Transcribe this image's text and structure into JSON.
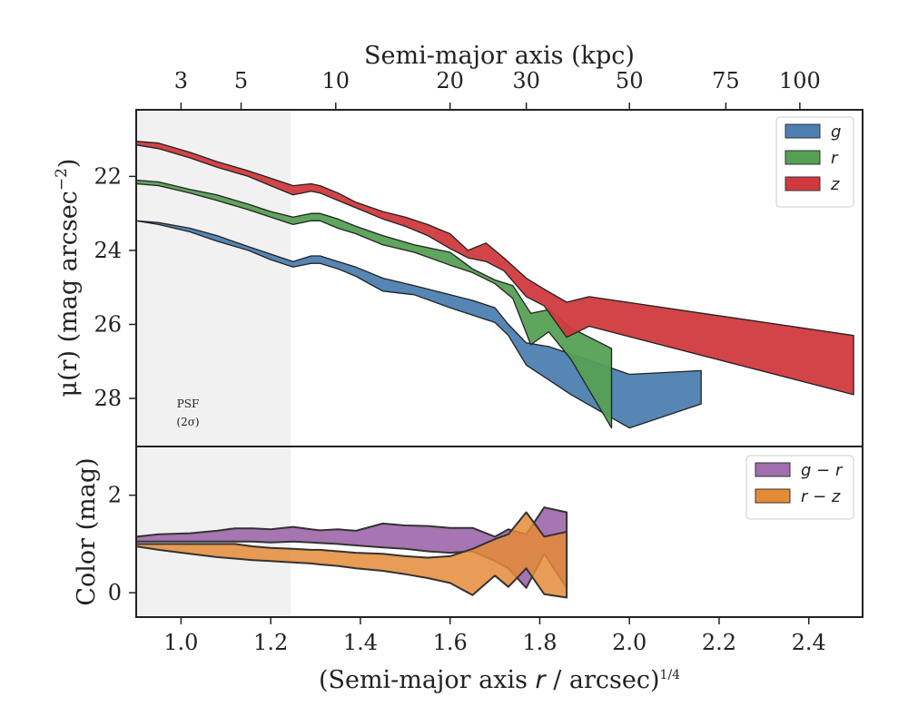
{
  "figure": {
    "top_axis_label": "Semi-major axis (kpc)",
    "bottom_axis_label_html": "(Semi-major axis <tspan font-style='italic' font-family='DejaVu Sans, sans-serif'>r</tspan> / arcsec)<tspan dy='-10' font-size='14'>1/4</tspan>",
    "upper_ylabel_main": "μ(r) (mag arcsec",
    "upper_ylabel_sup": "−2",
    "upper_ylabel_close": ")",
    "lower_ylabel": "Color (mag)",
    "psf_label_line1": "PSF",
    "psf_label_line2": "(2σ)"
  },
  "colors": {
    "g": "#4c7fb0",
    "r": "#55a055",
    "z": "#d03a3e",
    "g_minus_r": "#a26eae",
    "r_minus_z": "#e58b37",
    "psf_shade": "#ebebeb"
  },
  "chart_data": [
    {
      "type": "area",
      "panel": "surface-brightness",
      "x_axis_label": "(Semi-major axis r / arcsec)^(1/4)",
      "ylabel": "μ(r) (mag arcsec^-2)",
      "xlim": [
        0.9,
        2.52
      ],
      "ylim": [
        29.3,
        20.2
      ],
      "y_inverted": true,
      "yticks": [
        22,
        24,
        26,
        28
      ],
      "top_axis": {
        "label": "Semi-major axis (kpc)",
        "ticks": [
          {
            "label": "3",
            "x": 1.0
          },
          {
            "label": "5",
            "x": 1.134
          },
          {
            "label": "10",
            "x": 1.345
          },
          {
            "label": "20",
            "x": 1.6
          },
          {
            "label": "30",
            "x": 1.77
          },
          {
            "label": "50",
            "x": 2.0
          },
          {
            "label": "75",
            "x": 2.215
          },
          {
            "label": "100",
            "x": 2.38
          }
        ]
      },
      "psf_region": {
        "x_max": 1.245,
        "label": "PSF (2σ)"
      },
      "legend": "top-right",
      "series": [
        {
          "name": "g",
          "x": [
            0.9,
            0.95,
            1.02,
            1.08,
            1.15,
            1.2,
            1.25,
            1.29,
            1.31,
            1.35,
            1.39,
            1.45,
            1.52,
            1.6,
            1.65,
            1.7,
            1.73,
            1.77,
            1.82,
            1.87,
            2.0,
            2.16
          ],
          "upper": [
            23.2,
            23.3,
            23.5,
            23.75,
            24.0,
            24.25,
            24.45,
            24.35,
            24.35,
            24.5,
            24.7,
            25.1,
            25.2,
            25.55,
            25.75,
            25.95,
            26.3,
            27.1,
            27.5,
            27.9,
            28.8,
            28.15
          ],
          "lower": [
            23.2,
            23.25,
            23.4,
            23.6,
            23.9,
            24.1,
            24.3,
            24.15,
            24.15,
            24.3,
            24.45,
            24.75,
            24.95,
            25.2,
            25.35,
            25.55,
            26.0,
            26.5,
            26.6,
            26.8,
            27.35,
            27.25
          ]
        },
        {
          "name": "r",
          "x": [
            0.9,
            0.95,
            1.02,
            1.08,
            1.15,
            1.2,
            1.25,
            1.29,
            1.31,
            1.35,
            1.39,
            1.45,
            1.52,
            1.6,
            1.65,
            1.7,
            1.74,
            1.78,
            1.82,
            1.87,
            1.96
          ],
          "upper": [
            22.2,
            22.25,
            22.45,
            22.65,
            22.9,
            23.1,
            23.3,
            23.2,
            23.2,
            23.4,
            23.55,
            23.85,
            24.05,
            24.4,
            24.6,
            24.9,
            25.3,
            26.55,
            26.2,
            26.95,
            28.8
          ],
          "lower": [
            22.1,
            22.15,
            22.35,
            22.5,
            22.75,
            22.95,
            23.1,
            23.0,
            23.0,
            23.15,
            23.35,
            23.6,
            23.85,
            24.05,
            24.5,
            24.8,
            24.95,
            25.7,
            25.6,
            26.1,
            26.65
          ]
        },
        {
          "name": "z",
          "x": [
            0.9,
            0.95,
            1.02,
            1.08,
            1.15,
            1.2,
            1.25,
            1.29,
            1.31,
            1.35,
            1.39,
            1.45,
            1.5,
            1.55,
            1.6,
            1.64,
            1.68,
            1.72,
            1.77,
            1.81,
            1.86,
            1.91,
            2.5
          ],
          "upper": [
            21.15,
            21.25,
            21.5,
            21.75,
            22.0,
            22.25,
            22.5,
            22.4,
            22.45,
            22.65,
            22.85,
            23.15,
            23.35,
            23.6,
            23.95,
            24.2,
            24.3,
            24.55,
            25.25,
            25.5,
            26.35,
            26.05,
            27.9
          ],
          "lower": [
            21.05,
            21.1,
            21.35,
            21.6,
            21.85,
            22.05,
            22.25,
            22.2,
            22.25,
            22.45,
            22.7,
            22.95,
            23.1,
            23.3,
            23.55,
            24.0,
            23.8,
            24.2,
            24.75,
            25.05,
            25.4,
            25.25,
            26.3
          ]
        }
      ]
    },
    {
      "type": "area",
      "panel": "color",
      "xlabel": "(Semi-major axis r / arcsec)^(1/4)",
      "ylabel": "Color (mag)",
      "xlim": [
        0.9,
        2.52
      ],
      "ylim": [
        -0.5,
        3.0
      ],
      "xticks": [
        1.0,
        1.2,
        1.4,
        1.6,
        1.8,
        2.0,
        2.2,
        2.4
      ],
      "yticks": [
        0,
        2
      ],
      "legend": "top-right",
      "series": [
        {
          "name": "g − r",
          "x": [
            0.9,
            0.95,
            1.02,
            1.08,
            1.12,
            1.16,
            1.2,
            1.25,
            1.29,
            1.31,
            1.35,
            1.39,
            1.45,
            1.5,
            1.55,
            1.6,
            1.65,
            1.7,
            1.73,
            1.77,
            1.81,
            1.86
          ],
          "upper": [
            1.15,
            1.2,
            1.22,
            1.27,
            1.32,
            1.32,
            1.3,
            1.35,
            1.3,
            1.28,
            1.3,
            1.27,
            1.42,
            1.38,
            1.37,
            1.33,
            1.33,
            1.15,
            1.3,
            1.2,
            1.75,
            1.65
          ],
          "lower": [
            1.05,
            1.05,
            1.05,
            1.05,
            1.05,
            1.05,
            1.03,
            1.05,
            1.03,
            1.02,
            1.0,
            0.97,
            0.93,
            0.9,
            0.85,
            0.82,
            0.85,
            0.65,
            0.5,
            0.1,
            0.8,
            0.1
          ]
        },
        {
          "name": "r − z",
          "x": [
            0.9,
            0.95,
            1.02,
            1.08,
            1.12,
            1.16,
            1.2,
            1.25,
            1.29,
            1.31,
            1.35,
            1.39,
            1.45,
            1.5,
            1.55,
            1.6,
            1.65,
            1.7,
            1.73,
            1.77,
            1.81,
            1.86
          ],
          "upper": [
            1.0,
            1.0,
            1.0,
            1.0,
            1.0,
            0.95,
            0.92,
            0.9,
            0.88,
            0.88,
            0.85,
            0.82,
            0.8,
            0.75,
            0.72,
            0.75,
            0.9,
            1.1,
            1.2,
            1.65,
            1.15,
            1.25
          ],
          "lower": [
            0.95,
            0.88,
            0.8,
            0.73,
            0.7,
            0.67,
            0.65,
            0.62,
            0.6,
            0.58,
            0.55,
            0.5,
            0.45,
            0.38,
            0.3,
            0.2,
            -0.05,
            0.35,
            0.12,
            0.5,
            -0.03,
            -0.1
          ]
        }
      ]
    }
  ]
}
